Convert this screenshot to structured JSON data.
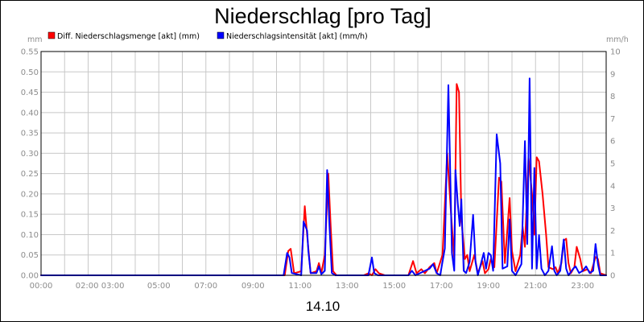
{
  "chart_data": {
    "type": "line",
    "title": "Niederschlag [pro Tag]",
    "xlabel": "14.10",
    "ylabel_left": "mm",
    "ylabel_right": "mm/h",
    "xlim": [
      0,
      24
    ],
    "ylim_left": [
      0,
      0.55
    ],
    "ylim_right": [
      0,
      10
    ],
    "grid": true,
    "legend_position": "top-left",
    "x_tick_labels": [
      "00:00",
      "02:00 03:00",
      "05:00",
      "07:00",
      "09:00",
      "11:00",
      "13:00",
      "15:00",
      "17:00",
      "19:00",
      "21:00",
      "23:00"
    ],
    "x_tick_positions": [
      0,
      2.5,
      5,
      7,
      9,
      11,
      13,
      15,
      17,
      19,
      21,
      23
    ],
    "y_left_ticks": [
      "0.00",
      "0.05",
      "0.10",
      "0.15",
      "0.20",
      "0.25",
      "0.30",
      "0.35",
      "0.40",
      "0.45",
      "0.50",
      "0.55"
    ],
    "y_right_ticks": [
      "0",
      "1",
      "2",
      "3",
      "4",
      "5",
      "6",
      "7",
      "8",
      "9",
      "10"
    ],
    "series": [
      {
        "name": "Diff. Niederschlagsmenge [akt] (mm)",
        "color": "#ff0000",
        "axis": "left",
        "points": [
          [
            0,
            0
          ],
          [
            10.35,
            0
          ],
          [
            10.5,
            0.06
          ],
          [
            10.6,
            0.065
          ],
          [
            10.75,
            0.005
          ],
          [
            11.05,
            0.01
          ],
          [
            11.2,
            0.17
          ],
          [
            11.3,
            0.1
          ],
          [
            11.45,
            0.005
          ],
          [
            11.7,
            0.01
          ],
          [
            11.8,
            0.03
          ],
          [
            11.9,
            0.005
          ],
          [
            12.05,
            0.05
          ],
          [
            12.2,
            0.25
          ],
          [
            12.3,
            0.12
          ],
          [
            12.4,
            0.01
          ],
          [
            12.55,
            0
          ],
          [
            13.7,
            0
          ],
          [
            13.9,
            0.005
          ],
          [
            14.05,
            0
          ],
          [
            14.2,
            0.015
          ],
          [
            14.35,
            0.005
          ],
          [
            14.6,
            0
          ],
          [
            15.6,
            0
          ],
          [
            15.8,
            0.035
          ],
          [
            15.95,
            0.005
          ],
          [
            16.15,
            0.015
          ],
          [
            16.3,
            0.005
          ],
          [
            16.5,
            0.02
          ],
          [
            16.7,
            0.03
          ],
          [
            16.8,
            0.005
          ],
          [
            17.05,
            0.05
          ],
          [
            17.25,
            0.3
          ],
          [
            17.4,
            0.16
          ],
          [
            17.55,
            0.04
          ],
          [
            17.65,
            0.47
          ],
          [
            17.75,
            0.45
          ],
          [
            17.85,
            0.14
          ],
          [
            18.0,
            0.04
          ],
          [
            18.1,
            0.05
          ],
          [
            18.2,
            0.01
          ],
          [
            18.4,
            0.05
          ],
          [
            18.55,
            0.005
          ],
          [
            18.75,
            0.035
          ],
          [
            18.85,
            0.005
          ],
          [
            19.0,
            0.015
          ],
          [
            19.1,
            0.04
          ],
          [
            19.25,
            0.02
          ],
          [
            19.45,
            0.24
          ],
          [
            19.55,
            0.23
          ],
          [
            19.7,
            0.03
          ],
          [
            19.9,
            0.19
          ],
          [
            20.0,
            0.06
          ],
          [
            20.15,
            0.01
          ],
          [
            20.35,
            0.05
          ],
          [
            20.45,
            0.12
          ],
          [
            20.55,
            0.07
          ],
          [
            20.7,
            0.29
          ],
          [
            20.85,
            0.2
          ],
          [
            20.95,
            0.1
          ],
          [
            21.05,
            0.29
          ],
          [
            21.15,
            0.28
          ],
          [
            21.3,
            0.2
          ],
          [
            21.45,
            0.1
          ],
          [
            21.55,
            0.02
          ],
          [
            21.75,
            0.015
          ],
          [
            21.85,
            0.02
          ],
          [
            21.95,
            0.005
          ],
          [
            22.1,
            0.03
          ],
          [
            22.2,
            0.085
          ],
          [
            22.3,
            0.09
          ],
          [
            22.4,
            0.03
          ],
          [
            22.5,
            0.005
          ],
          [
            22.65,
            0.02
          ],
          [
            22.75,
            0.07
          ],
          [
            22.9,
            0.04
          ],
          [
            23.0,
            0.01
          ],
          [
            23.2,
            0.015
          ],
          [
            23.35,
            0.005
          ],
          [
            23.55,
            0.045
          ],
          [
            23.65,
            0.04
          ],
          [
            23.75,
            0.005
          ],
          [
            24,
            0
          ]
        ]
      },
      {
        "name": "Niederschlagsintensität [akt] (mm/h)",
        "color": "#0000ff",
        "axis": "right",
        "points": [
          [
            0,
            0
          ],
          [
            10.3,
            0
          ],
          [
            10.45,
            1.0
          ],
          [
            10.55,
            0.8
          ],
          [
            10.65,
            0.1
          ],
          [
            11.05,
            0
          ],
          [
            11.15,
            2.4
          ],
          [
            11.3,
            2.0
          ],
          [
            11.35,
            1.1
          ],
          [
            11.45,
            0.1
          ],
          [
            11.7,
            0.1
          ],
          [
            11.8,
            0.4
          ],
          [
            11.9,
            0.05
          ],
          [
            12.05,
            0.2
          ],
          [
            12.15,
            4.7
          ],
          [
            12.25,
            2.2
          ],
          [
            12.35,
            0.1
          ],
          [
            12.5,
            0
          ],
          [
            13.9,
            0
          ],
          [
            14.05,
            0.8
          ],
          [
            14.15,
            0.1
          ],
          [
            14.3,
            0
          ],
          [
            15.6,
            0
          ],
          [
            15.75,
            0.2
          ],
          [
            15.9,
            0
          ],
          [
            16.5,
            0.3
          ],
          [
            16.65,
            0.5
          ],
          [
            16.8,
            0.1
          ],
          [
            16.95,
            0
          ],
          [
            17.15,
            1.2
          ],
          [
            17.3,
            8.5
          ],
          [
            17.45,
            1.0
          ],
          [
            17.55,
            0.2
          ],
          [
            17.6,
            4.7
          ],
          [
            17.7,
            3.2
          ],
          [
            17.78,
            2.2
          ],
          [
            17.85,
            3.4
          ],
          [
            17.95,
            0.2
          ],
          [
            18.05,
            0.1
          ],
          [
            18.2,
            0.6
          ],
          [
            18.35,
            2.7
          ],
          [
            18.45,
            0.6
          ],
          [
            18.55,
            0
          ],
          [
            18.8,
            1.0
          ],
          [
            18.9,
            0.3
          ],
          [
            19.0,
            1.0
          ],
          [
            19.1,
            0.9
          ],
          [
            19.2,
            0.2
          ],
          [
            19.35,
            6.3
          ],
          [
            19.5,
            5.0
          ],
          [
            19.6,
            0.3
          ],
          [
            19.8,
            0.4
          ],
          [
            19.9,
            2.5
          ],
          [
            20.0,
            0.2
          ],
          [
            20.15,
            0
          ],
          [
            20.4,
            0.5
          ],
          [
            20.55,
            6.0
          ],
          [
            20.65,
            1.4
          ],
          [
            20.75,
            8.8
          ],
          [
            20.85,
            0.3
          ],
          [
            20.95,
            4.8
          ],
          [
            21.05,
            0.3
          ],
          [
            21.15,
            1.8
          ],
          [
            21.25,
            0.3
          ],
          [
            21.4,
            0
          ],
          [
            21.55,
            0.2
          ],
          [
            21.7,
            1.3
          ],
          [
            21.8,
            0.2
          ],
          [
            21.9,
            0
          ],
          [
            22.05,
            0.2
          ],
          [
            22.2,
            1.6
          ],
          [
            22.3,
            0.3
          ],
          [
            22.4,
            0
          ],
          [
            22.6,
            0.3
          ],
          [
            22.7,
            0.4
          ],
          [
            22.85,
            0.1
          ],
          [
            23.0,
            0.2
          ],
          [
            23.15,
            0.4
          ],
          [
            23.3,
            0.1
          ],
          [
            23.45,
            0.2
          ],
          [
            23.55,
            1.4
          ],
          [
            23.65,
            0.5
          ],
          [
            23.75,
            0
          ],
          [
            24,
            0
          ]
        ]
      }
    ]
  }
}
